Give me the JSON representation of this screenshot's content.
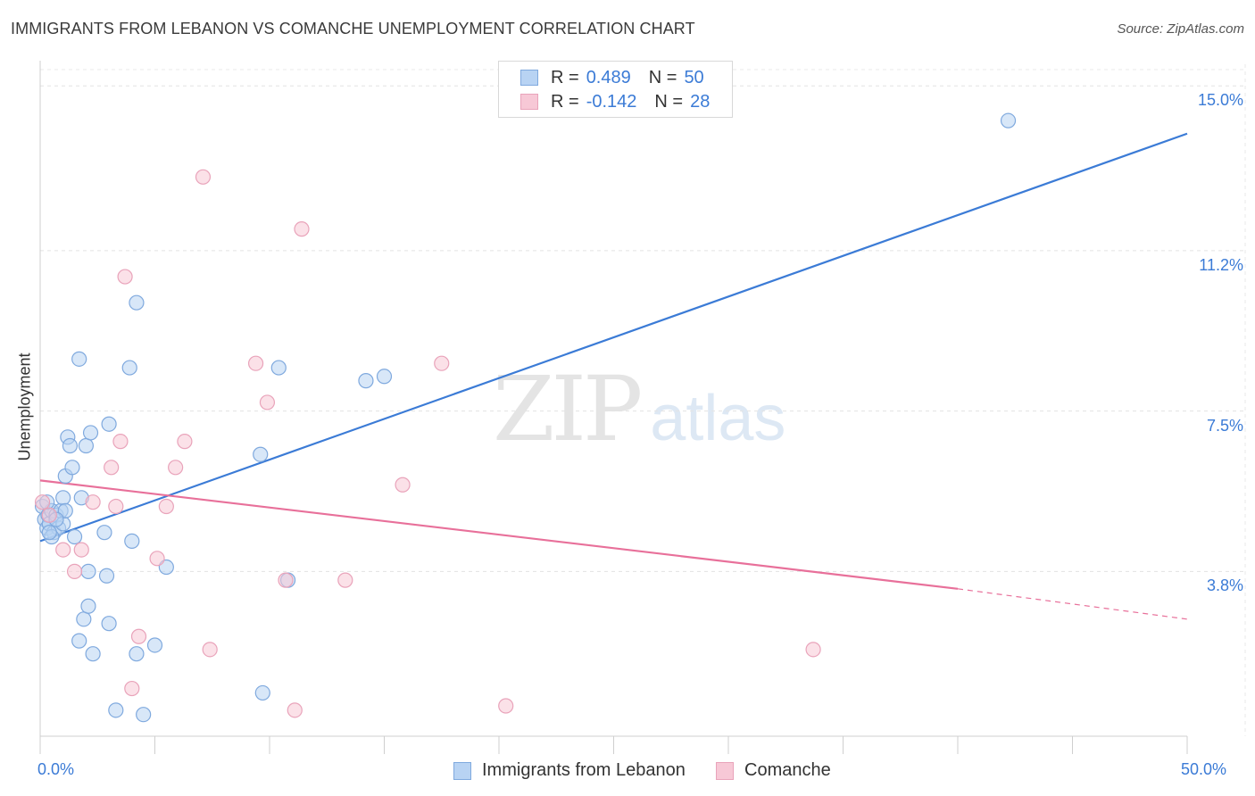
{
  "title": "IMMIGRANTS FROM LEBANON VS COMANCHE UNEMPLOYMENT CORRELATION CHART",
  "source": "Source: ZipAtlas.com",
  "watermark": {
    "zip": "ZIP",
    "atlas": "atlas"
  },
  "colors": {
    "blue": "#3b7bd6",
    "blue_fill": "#b8d3f3",
    "pink": "#e8709a",
    "pink_fill": "#f7c8d6"
  },
  "legend": {
    "rows": [
      {
        "r_label": "R =",
        "r_value": "0.489",
        "n_label": "N =",
        "n_value": "50"
      },
      {
        "r_label": "R =",
        "r_value": "-0.142",
        "n_label": "N =",
        "n_value": "28"
      }
    ]
  },
  "bottom_legend": {
    "series1": "Immigrants from Lebanon",
    "series2": "Comanche"
  },
  "chart_data": {
    "type": "scatter",
    "title": "IMMIGRANTS FROM LEBANON VS COMANCHE UNEMPLOYMENT CORRELATION CHART",
    "xlabel": "",
    "ylabel": "Unemployment",
    "xlim": [
      0,
      50
    ],
    "ylim": [
      0,
      15.5
    ],
    "x_tick_labels": [
      "0.0%",
      "50.0%"
    ],
    "y_ticks": [
      3.8,
      7.5,
      11.2,
      15.0
    ],
    "y_tick_labels": [
      "3.8%",
      "7.5%",
      "11.2%",
      "15.0%"
    ],
    "grid": true,
    "series": [
      {
        "name": "Immigrants from Lebanon",
        "r": 0.489,
        "n": 50,
        "points": [
          [
            0.1,
            5.3
          ],
          [
            0.2,
            5.0
          ],
          [
            0.3,
            4.8
          ],
          [
            0.35,
            5.1
          ],
          [
            0.4,
            4.9
          ],
          [
            0.5,
            5.2
          ],
          [
            0.6,
            4.7
          ],
          [
            0.7,
            5.1
          ],
          [
            0.8,
            4.8
          ],
          [
            0.9,
            5.2
          ],
          [
            1.0,
            4.9
          ],
          [
            1.0,
            5.5
          ],
          [
            1.1,
            5.2
          ],
          [
            1.1,
            6.0
          ],
          [
            1.2,
            6.9
          ],
          [
            1.3,
            6.7
          ],
          [
            1.4,
            6.2
          ],
          [
            1.5,
            4.6
          ],
          [
            1.7,
            8.7
          ],
          [
            1.8,
            5.5
          ],
          [
            1.9,
            2.7
          ],
          [
            2.0,
            6.7
          ],
          [
            2.1,
            3.0
          ],
          [
            2.1,
            3.8
          ],
          [
            2.2,
            7.0
          ],
          [
            2.3,
            1.9
          ],
          [
            1.7,
            2.2
          ],
          [
            2.8,
            4.7
          ],
          [
            2.9,
            3.7
          ],
          [
            3.0,
            7.2
          ],
          [
            3.0,
            2.6
          ],
          [
            3.3,
            0.6
          ],
          [
            3.9,
            8.5
          ],
          [
            4.0,
            4.5
          ],
          [
            4.2,
            10.0
          ],
          [
            4.2,
            1.9
          ],
          [
            4.5,
            0.5
          ],
          [
            5.0,
            2.1
          ],
          [
            5.5,
            3.9
          ],
          [
            9.6,
            6.5
          ],
          [
            9.7,
            1.0
          ],
          [
            10.4,
            8.5
          ],
          [
            10.8,
            3.6
          ],
          [
            14.2,
            8.2
          ],
          [
            15.0,
            8.3
          ],
          [
            42.2,
            14.2
          ],
          [
            0.5,
            4.6
          ],
          [
            0.3,
            5.4
          ],
          [
            0.7,
            5.0
          ],
          [
            0.4,
            4.7
          ]
        ],
        "trend": {
          "x": [
            0,
            50
          ],
          "y": [
            4.5,
            13.9
          ]
        }
      },
      {
        "name": "Comanche",
        "r": -0.142,
        "n": 28,
        "points": [
          [
            0.1,
            5.4
          ],
          [
            0.4,
            5.1
          ],
          [
            1.0,
            4.3
          ],
          [
            1.5,
            3.8
          ],
          [
            1.8,
            4.3
          ],
          [
            2.3,
            5.4
          ],
          [
            3.1,
            6.2
          ],
          [
            3.3,
            5.3
          ],
          [
            3.5,
            6.8
          ],
          [
            3.7,
            10.6
          ],
          [
            4.0,
            1.1
          ],
          [
            4.3,
            2.3
          ],
          [
            5.1,
            4.1
          ],
          [
            5.5,
            5.3
          ],
          [
            5.9,
            6.2
          ],
          [
            6.3,
            6.8
          ],
          [
            7.1,
            12.9
          ],
          [
            7.4,
            2.0
          ],
          [
            9.4,
            8.6
          ],
          [
            9.9,
            7.7
          ],
          [
            10.7,
            3.6
          ],
          [
            11.1,
            0.6
          ],
          [
            11.4,
            11.7
          ],
          [
            13.3,
            3.6
          ],
          [
            15.8,
            5.8
          ],
          [
            17.5,
            8.6
          ],
          [
            20.3,
            0.7
          ],
          [
            33.7,
            2.0
          ]
        ],
        "trend": {
          "x": [
            0,
            40
          ],
          "y": [
            5.9,
            3.4
          ]
        },
        "trend_dashed": {
          "x": [
            40,
            50
          ],
          "y": [
            3.4,
            2.7
          ]
        }
      }
    ]
  }
}
